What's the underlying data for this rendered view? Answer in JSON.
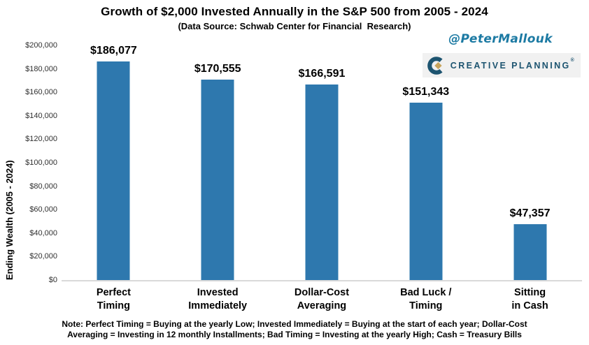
{
  "header": {
    "handle": "@PeterMallouk"
  },
  "logo": {
    "brand": "CREATIVE PLANNING",
    "trademark": "®",
    "icon": "creative-planning-c-icon"
  },
  "colors": {
    "bar": "#2e78ae",
    "handle": "#1c7aa3",
    "logo_navy": "#1d5470",
    "logo_gold": "#c8a45c",
    "logo_bg": "#f1f1f1",
    "baseline": "#d9d9d9",
    "tick_text": "#303030",
    "text": "#000000"
  },
  "chart_data": {
    "type": "bar",
    "title": "Growth of $2,000 Invested Annually in the S&P 500 from 2005 - 2024",
    "subtitle": "(Data Source: Schwab Center for Financial  Research)",
    "categories": [
      "Perfect\nTiming",
      "Invested\nImmediately",
      "Dollar-Cost\nAveraging",
      "Bad Luck /\nTiming",
      "Sitting\nin Cash"
    ],
    "values": [
      186077,
      170555,
      166591,
      151343,
      47357
    ],
    "value_labels": [
      "$186,077",
      "$170,555",
      "$166,591",
      "$151,343",
      "$47,357"
    ],
    "xlabel": "",
    "ylabel": "Ending Wealth (2005 - 2024)",
    "ylim": [
      0,
      200000
    ],
    "ytick_interval": 20000,
    "ytick_labels": [
      "$0",
      "$20,000",
      "$40,000",
      "$60,000",
      "$80,000",
      "$100,000",
      "$120,000",
      "$140,000",
      "$160,000",
      "$180,000",
      "$200,000"
    ],
    "grid": false,
    "legend": "none"
  },
  "note": "Note: Perfect Timing = Buying at the yearly Low; Invested Immediately = Buying at the start of each year; Dollar-Cost\nAveraging = Investing in 12 monthly Installments; Bad Timing = Investing at the yearly High; Cash = Treasury Bills"
}
